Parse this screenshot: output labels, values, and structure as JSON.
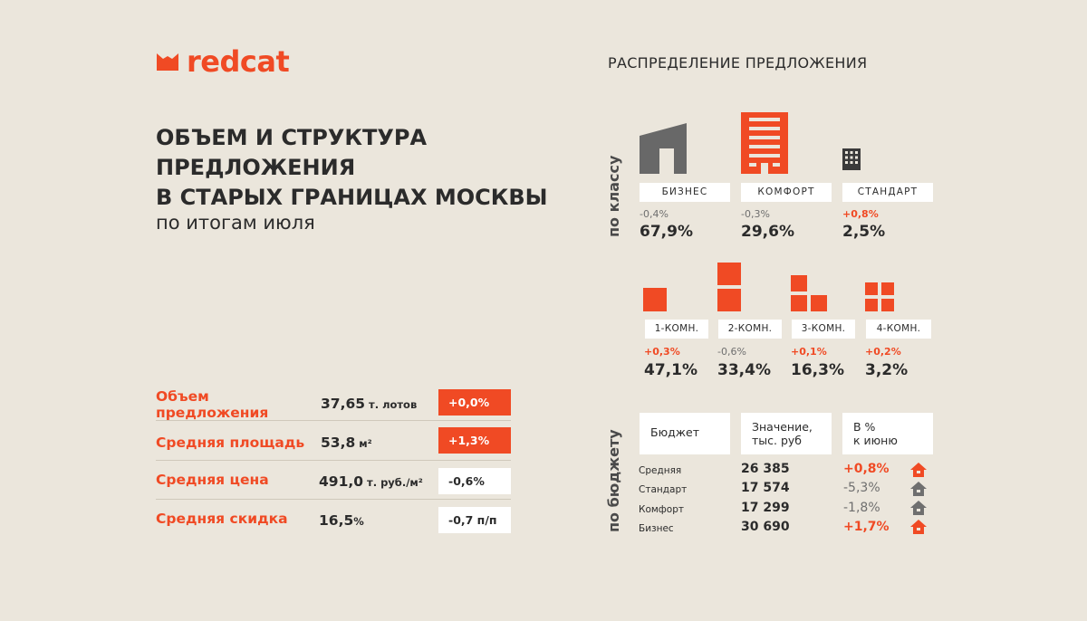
{
  "brand": {
    "name": "redcat",
    "color": "#f04a24"
  },
  "title": {
    "line1": "ОБЪЕМ И СТРУКТУРА",
    "line2": "ПРЕДЛОЖЕНИЯ",
    "line3": "В СТАРЫХ ГРАНИЦАХ МОСКВЫ",
    "subtitle": "по итогам июля"
  },
  "section_title": "РАСПРЕДЕЛЕНИЕ ПРЕДЛОЖЕНИЯ",
  "stats": [
    {
      "label_line1": "Объем",
      "label_line2": "предложения",
      "value": "37,65",
      "unit": " т. лотов",
      "change": "+0,0%",
      "highlight": true
    },
    {
      "label_line1": "Средняя площадь",
      "label_line2": "",
      "value": "53,8",
      "unit": " м²",
      "change": "+1,3%",
      "highlight": true
    },
    {
      "label_line1": "Средняя цена",
      "label_line2": "",
      "value": "491,0",
      "unit": " т. руб./м²",
      "change": "-0,6%",
      "highlight": false
    },
    {
      "label_line1": "Средняя скидка",
      "label_line2": "",
      "value": "16,5",
      "unit": "%",
      "change": "-0,7 п/п",
      "highlight": false
    }
  ],
  "by_class": {
    "side_label": "по классу",
    "items": [
      {
        "name": "БИЗНЕС",
        "delta": "-0,4%",
        "value": "67,9%",
        "icon": "business-building-icon"
      },
      {
        "name": "КОМФОРТ",
        "delta": "-0,3%",
        "value": "29,6%",
        "icon": "comfort-building-icon"
      },
      {
        "name": "СТАНДАРТ",
        "delta": "+0,8%",
        "value": "2,5%",
        "icon": "standard-building-icon"
      }
    ]
  },
  "by_rooms": {
    "items": [
      {
        "name": "1-КОМН.",
        "delta": "+0,3%",
        "value": "47,1%"
      },
      {
        "name": "2-КОМН.",
        "delta": "-0,6%",
        "value": "33,4%"
      },
      {
        "name": "3-КОМН.",
        "delta": "+0,1%",
        "value": "16,3%"
      },
      {
        "name": "4-КОМН.",
        "delta": "+0,2%",
        "value": "3,2%"
      }
    ]
  },
  "by_budget": {
    "side_label": "по бюджету",
    "headers": {
      "col1": "Бюджет",
      "col2_line1": "Значение,",
      "col2_line2": "тыс. руб",
      "col3_line1": "В %",
      "col3_line2": "к июню"
    },
    "rows": [
      {
        "label": "Средняя",
        "value": "26 385",
        "pct": "+0,8%",
        "up": true
      },
      {
        "label": "Стандарт",
        "value": "17 574",
        "pct": "-5,3%",
        "up": false
      },
      {
        "label": "Комфорт",
        "value": "17 299",
        "pct": "-1,8%",
        "up": false
      },
      {
        "label": "Бизнес",
        "value": "30 690",
        "pct": "+1,7%",
        "up": true
      }
    ]
  }
}
